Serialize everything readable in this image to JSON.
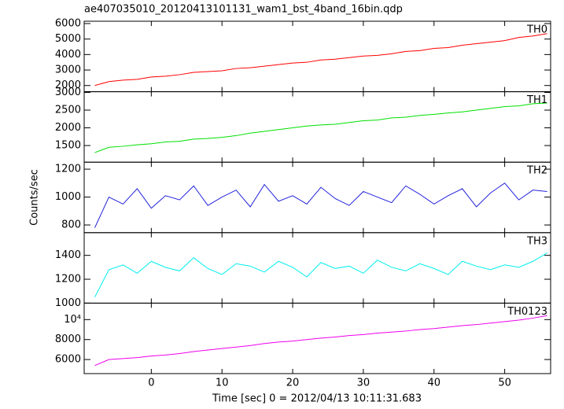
{
  "chart_data": [
    {
      "type": "line",
      "title": "ae407035010_20120413101131_wam1_bst_4band_16bin.qdp",
      "x": [
        -8,
        -6,
        -4,
        -2,
        0,
        2,
        4,
        6,
        8,
        10,
        12,
        14,
        16,
        18,
        20,
        22,
        24,
        26,
        28,
        30,
        32,
        34,
        36,
        38,
        40,
        42,
        44,
        46,
        48,
        50,
        52,
        54,
        56
      ],
      "series": [
        {
          "name": "TH0",
          "color": "#ff0000",
          "values": [
            2000,
            2250,
            2350,
            2400,
            2550,
            2600,
            2700,
            2850,
            2900,
            2950,
            3100,
            3150,
            3250,
            3350,
            3450,
            3500,
            3650,
            3700,
            3800,
            3900,
            3950,
            4050,
            4200,
            4250,
            4400,
            4450,
            4600,
            4700,
            4800,
            4900,
            5100,
            5200,
            5350
          ]
        }
      ],
      "xlim": [
        -9.5,
        56.5
      ],
      "ylim": [
        1600,
        6150
      ],
      "yticks": [
        2000,
        3000,
        4000,
        5000,
        6000
      ]
    },
    {
      "type": "line",
      "x": [
        -8,
        -6,
        -4,
        -2,
        0,
        2,
        4,
        6,
        8,
        10,
        12,
        14,
        16,
        18,
        20,
        22,
        24,
        26,
        28,
        30,
        32,
        34,
        36,
        38,
        40,
        42,
        44,
        46,
        48,
        50,
        52,
        54,
        56
      ],
      "series": [
        {
          "name": "TH1",
          "color": "#00e000",
          "values": [
            1300,
            1450,
            1480,
            1520,
            1550,
            1600,
            1620,
            1680,
            1700,
            1730,
            1780,
            1850,
            1900,
            1950,
            2000,
            2050,
            2080,
            2100,
            2150,
            2200,
            2220,
            2280,
            2300,
            2350,
            2380,
            2420,
            2450,
            2500,
            2550,
            2600,
            2620,
            2680,
            2700
          ]
        }
      ],
      "xlim": [
        -9.5,
        56.5
      ],
      "ylim": [
        1030,
        3020
      ],
      "yticks": [
        1500,
        2000,
        2500,
        3000
      ]
    },
    {
      "type": "line",
      "ylabel": "Counts/sec",
      "x": [
        -8,
        -6,
        -4,
        -2,
        0,
        2,
        4,
        6,
        8,
        10,
        12,
        14,
        16,
        18,
        20,
        22,
        24,
        26,
        28,
        30,
        32,
        34,
        36,
        38,
        40,
        42,
        44,
        46,
        48,
        50,
        52,
        54,
        56
      ],
      "series": [
        {
          "name": "TH2",
          "color": "#2222dd",
          "values": [
            780,
            1000,
            950,
            1060,
            920,
            1010,
            980,
            1080,
            940,
            1000,
            1050,
            930,
            1090,
            970,
            1010,
            950,
            1070,
            990,
            940,
            1040,
            1000,
            960,
            1080,
            1020,
            950,
            1010,
            1060,
            930,
            1030,
            1100,
            980,
            1050,
            1040
          ]
        }
      ],
      "xlim": [
        -9.5,
        56.5
      ],
      "ylim": [
        745,
        1250
      ],
      "yticks": [
        800,
        1000,
        1200
      ]
    },
    {
      "type": "line",
      "x": [
        -8,
        -6,
        -4,
        -2,
        0,
        2,
        4,
        6,
        8,
        10,
        12,
        14,
        16,
        18,
        20,
        22,
        24,
        26,
        28,
        30,
        32,
        34,
        36,
        38,
        40,
        42,
        44,
        46,
        48,
        50,
        52,
        54,
        56
      ],
      "series": [
        {
          "name": "TH3",
          "color": "#00eeee",
          "values": [
            1050,
            1280,
            1320,
            1250,
            1350,
            1300,
            1270,
            1380,
            1290,
            1240,
            1330,
            1310,
            1260,
            1350,
            1300,
            1220,
            1340,
            1290,
            1310,
            1250,
            1360,
            1300,
            1270,
            1330,
            1290,
            1240,
            1350,
            1310,
            1280,
            1320,
            1300,
            1350,
            1420
          ]
        }
      ],
      "xlim": [
        -9.5,
        56.5
      ],
      "ylim": [
        1000,
        1590
      ],
      "yticks": [
        1000,
        1200,
        1400
      ]
    },
    {
      "type": "line",
      "xlabel": "Time [sec] 0 = 2012/04/13 10:11:31.683",
      "x": [
        -8,
        -6,
        -4,
        -2,
        0,
        2,
        4,
        6,
        8,
        10,
        12,
        14,
        16,
        18,
        20,
        22,
        24,
        26,
        28,
        30,
        32,
        34,
        36,
        38,
        40,
        42,
        44,
        46,
        48,
        50,
        52,
        54,
        56
      ],
      "series": [
        {
          "name": "TH0123",
          "color": "#ee00ee",
          "values": [
            5400,
            6000,
            6100,
            6200,
            6350,
            6450,
            6600,
            6800,
            6950,
            7100,
            7250,
            7400,
            7600,
            7750,
            7850,
            8000,
            8150,
            8250,
            8400,
            8500,
            8650,
            8750,
            8850,
            9000,
            9100,
            9250,
            9400,
            9500,
            9650,
            9800,
            9950,
            10150,
            10400
          ]
        }
      ],
      "xlim": [
        -9.5,
        56.5
      ],
      "ylim": [
        4590,
        11650
      ],
      "yticks": [
        6000,
        8000,
        {
          "value": 10000,
          "label": "10⁴"
        }
      ],
      "xticks": [
        0,
        10,
        20,
        30,
        40,
        50
      ]
    }
  ]
}
